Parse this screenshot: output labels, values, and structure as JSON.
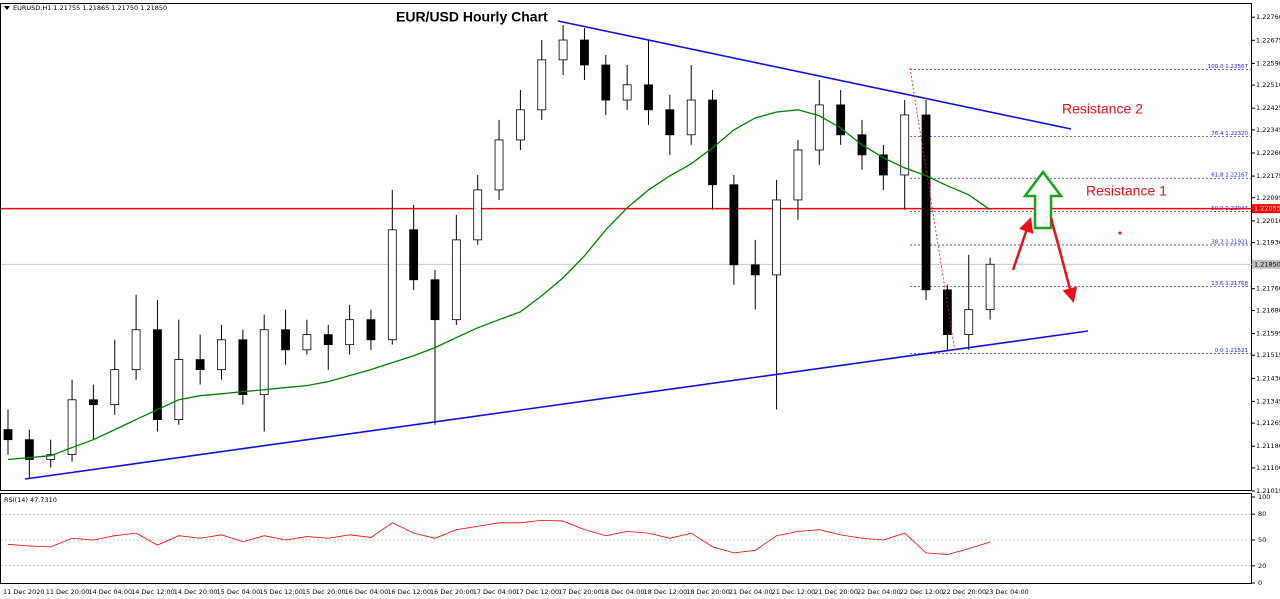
{
  "chart_data": [
    {
      "type": "candlestick",
      "title": "EUR/USD Hourly Chart",
      "symbol_info": "EURUSD,H1  1.21755 1.21865 1.21750 1.21850",
      "annotations": [
        "Resistance 2",
        "Resistance 1"
      ],
      "categories": [
        "11 Dec 2020",
        null,
        "11 Dec 20:00",
        null,
        "14 Dec 04:00",
        null,
        "14 Dec 12:00",
        null,
        "14 Dec 20:00",
        null,
        "15 Dec 04:00",
        null,
        "15 Dec 12:00",
        null,
        "15 Dec 20:00",
        null,
        "16 Dec 04:00",
        null,
        "16 Dec 12:00",
        null,
        "16 Dec 20:00",
        null,
        "17 Dec 04:00",
        null,
        "17 Dec 12:00",
        null,
        "17 Dec 20:00",
        null,
        "18 Dec 04:00",
        null,
        "18 Dec 12:00",
        null,
        "18 Dec 20:00",
        null,
        "21 Dec 04:00",
        null,
        "21 Dec 12:00",
        null,
        "21 Dec 20:00",
        null,
        "22 Dec 04:00",
        null,
        "22 Dec 12:00",
        null,
        "22 Dec 20:00",
        null,
        "23 Dec 04:00"
      ],
      "open": [
        1.21241,
        1.21204,
        1.21131,
        1.21149,
        1.21351,
        1.21333,
        1.21462,
        1.21609,
        1.21278,
        1.21499,
        1.21462,
        1.21572,
        1.2137,
        1.21609,
        1.21535,
        1.21591,
        1.21554,
        1.21646,
        1.21572,
        1.21977,
        1.21793,
        1.21646,
        1.2194,
        1.22124,
        1.22308,
        1.22419,
        1.22603,
        1.22676,
        1.22584,
        1.22455,
        1.22511,
        1.22419,
        1.22327,
        1.22455,
        1.22143,
        1.21848,
        1.21811,
        1.22087,
        1.22271,
        1.22437,
        1.22327,
        1.22253,
        1.22179,
        1.224,
        1.21756,
        1.21591,
        1.21683
      ],
      "high": [
        1.21315,
        1.21241,
        1.21204,
        1.21425,
        1.21407,
        1.21572,
        1.21738,
        1.21719,
        1.21646,
        1.21591,
        1.21627,
        1.21609,
        1.21664,
        1.21683,
        1.21646,
        1.21627,
        1.21701,
        1.21683,
        1.22124,
        1.22069,
        1.2183,
        1.22032,
        1.22179,
        1.22382,
        1.22492,
        1.22676,
        1.22731,
        1.2272,
        1.22621,
        1.22584,
        1.22676,
        1.22474,
        1.22584,
        1.22492,
        1.22179,
        1.2194,
        1.22161,
        1.22308,
        1.22529,
        1.22492,
        1.22382,
        1.2229,
        1.22455,
        1.22455,
        1.21775,
        1.21885,
        1.21874
      ],
      "low": [
        1.21149,
        1.21064,
        1.21101,
        1.21123,
        1.21204,
        1.21296,
        1.21425,
        1.21234,
        1.21259,
        1.21407,
        1.21425,
        1.21333,
        1.21234,
        1.2148,
        1.21517,
        1.21462,
        1.21517,
        1.21535,
        1.21554,
        1.21756,
        1.21259,
        1.21627,
        1.21922,
        1.22087,
        1.22271,
        1.22382,
        1.22547,
        1.22529,
        1.224,
        1.22419,
        1.22363,
        1.22253,
        1.2229,
        1.22051,
        1.21775,
        1.21683,
        1.21315,
        1.22014,
        1.22216,
        1.2229,
        1.22198,
        1.22124,
        1.22051,
        1.21719,
        1.21535,
        1.21535,
        1.21646
      ],
      "close": [
        1.21204,
        1.21131,
        1.21149,
        1.21351,
        1.21333,
        1.21462,
        1.21609,
        1.21278,
        1.21499,
        1.21462,
        1.21572,
        1.2137,
        1.21609,
        1.21535,
        1.21591,
        1.21554,
        1.21646,
        1.21572,
        1.21977,
        1.21793,
        1.21646,
        1.2194,
        1.22124,
        1.22308,
        1.22419,
        1.22603,
        1.22676,
        1.22584,
        1.22455,
        1.22511,
        1.22419,
        1.22327,
        1.22455,
        1.22143,
        1.21848,
        1.21811,
        1.22087,
        1.22271,
        1.22437,
        1.22327,
        1.22253,
        1.22179,
        1.224,
        1.21756,
        1.21591,
        1.21683,
        1.2185
      ],
      "up_color": "#ffffff",
      "down_color": "#000000",
      "moving_average": {
        "color": "#008000",
        "values": [
          1.21131,
          1.21138,
          1.21145,
          1.21175,
          1.21204,
          1.21241,
          1.21278,
          1.21315,
          1.21351,
          1.21366,
          1.21373,
          1.21381,
          1.21388,
          1.21396,
          1.21403,
          1.21418,
          1.2144,
          1.21462,
          1.21488,
          1.21513,
          1.21543,
          1.2158,
          1.21616,
          1.21646,
          1.21675,
          1.21734,
          1.218,
          1.21881,
          1.21977,
          1.22058,
          1.22124,
          1.22176,
          1.2222,
          1.22279,
          1.22345,
          1.22389,
          1.22411,
          1.22419,
          1.22397,
          1.22352,
          1.2229,
          1.22242,
          1.22205,
          1.22176,
          1.22139,
          1.22106,
          1.22051
        ]
      },
      "ylim": [
        1.21015,
        1.22805
      ],
      "yticks": [
        {
          "value": 1.2276,
          "label": "1.22760"
        },
        1.22675,
        {
          "value": 1.2259,
          "label": "1.22590"
        },
        {
          "value": 1.2251,
          "label": "1.22510"
        },
        1.22425,
        1.22345,
        {
          "value": 1.2226,
          "label": "1.22260"
        },
        1.22175,
        1.22095,
        {
          "value": 1.2201,
          "label": "1.22010"
        },
        {
          "value": 1.2193,
          "label": "1.21930"
        },
        1.21845,
        {
          "value": 1.2176,
          "label": "1.21760"
        },
        {
          "value": 1.2168,
          "label": "1.21680"
        },
        1.21595,
        1.21515,
        {
          "value": 1.2143,
          "label": "1.21430"
        },
        1.21345,
        1.21265,
        {
          "value": 1.2118,
          "label": "1.21180"
        },
        {
          "value": 1.211,
          "label": "1.21100"
        },
        1.21015
      ],
      "grid": false,
      "horizontal_line": {
        "value": 1.22055,
        "color": "#ff0000"
      },
      "current_price": {
        "value": 1.2185,
        "label": "1.21850",
        "color": "#c0c0c0"
      },
      "fibonacci": {
        "color": "#1a1aff",
        "levels": [
          {
            "value": 1.22567,
            "label": "100.0 1.22567"
          },
          {
            "value": 1.2232,
            "label": "76.4 1.22320"
          },
          {
            "value": 1.22167,
            "label": "61.8 1.22167"
          },
          {
            "value": 1.22044,
            "label": "50.0 1.22044"
          },
          {
            "value": 1.21921,
            "label": "38.2 1.21921"
          },
          {
            "value": 1.21768,
            "label": "23.6 1.21768"
          },
          {
            "value": 1.21521,
            "label": "0.0 1.21521"
          }
        ]
      }
    },
    {
      "type": "line",
      "label": "RSI(14) 47.7310",
      "color": "#ff0000",
      "values": [
        45,
        43,
        42,
        52,
        50,
        55,
        58,
        44,
        55,
        52,
        56,
        48,
        55,
        50,
        54,
        52,
        56,
        53,
        70,
        58,
        52,
        62,
        66,
        70,
        70,
        73,
        72,
        62,
        55,
        60,
        58,
        52,
        58,
        42,
        35,
        38,
        55,
        60,
        62,
        56,
        52,
        50,
        58,
        35,
        33,
        40,
        47.731
      ],
      "ylim": [
        0,
        100
      ],
      "yticks": [
        100,
        80,
        50,
        20,
        0
      ],
      "grid": true
    }
  ]
}
